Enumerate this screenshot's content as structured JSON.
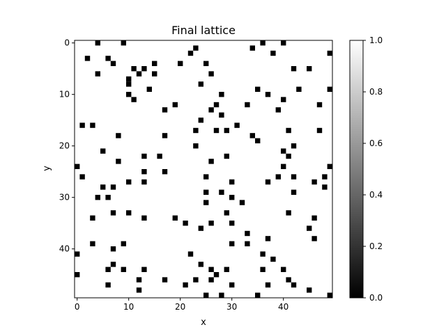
{
  "chart_data": {
    "type": "heatmap",
    "title": "Final lattice",
    "xlabel": "x",
    "ylabel": "y",
    "grid_size": [
      50,
      50
    ],
    "x_ticks": [
      0,
      10,
      20,
      30,
      40
    ],
    "y_ticks": [
      0,
      10,
      20,
      30,
      40
    ],
    "y_axis_inverted": true,
    "colormap": "gray",
    "background_value": 1,
    "cell_value": 0,
    "colorbar": {
      "range": [
        0.0,
        1.0
      ],
      "tick_labels": [
        "0.0",
        "0.2",
        "0.4",
        "0.6",
        "0.8",
        "1.0"
      ],
      "low_color": "#000000",
      "high_color": "#ffffff"
    },
    "cells": [
      [
        4,
        0
      ],
      [
        9,
        0
      ],
      [
        36,
        0
      ],
      [
        40,
        0
      ],
      [
        23,
        1
      ],
      [
        34,
        1
      ],
      [
        22,
        2
      ],
      [
        38,
        2
      ],
      [
        49,
        2
      ],
      [
        2,
        3
      ],
      [
        6,
        3
      ],
      [
        7,
        4
      ],
      [
        15,
        4
      ],
      [
        20,
        4
      ],
      [
        25,
        4
      ],
      [
        11,
        5
      ],
      [
        13,
        5
      ],
      [
        42,
        5
      ],
      [
        45,
        5
      ],
      [
        4,
        6
      ],
      [
        12,
        6
      ],
      [
        15,
        6
      ],
      [
        26,
        6
      ],
      [
        10,
        7
      ],
      [
        10,
        8
      ],
      [
        24,
        8
      ],
      [
        14,
        9
      ],
      [
        35,
        9
      ],
      [
        43,
        9
      ],
      [
        49,
        9
      ],
      [
        10,
        10
      ],
      [
        28,
        10
      ],
      [
        37,
        10
      ],
      [
        11,
        11
      ],
      [
        40,
        11
      ],
      [
        19,
        12
      ],
      [
        27,
        12
      ],
      [
        33,
        12
      ],
      [
        47,
        12
      ],
      [
        17,
        13
      ],
      [
        26,
        13
      ],
      [
        39,
        13
      ],
      [
        28,
        14
      ],
      [
        24,
        15
      ],
      [
        1,
        16
      ],
      [
        3,
        16
      ],
      [
        31,
        16
      ],
      [
        23,
        17
      ],
      [
        27,
        17
      ],
      [
        29,
        17
      ],
      [
        41,
        17
      ],
      [
        47,
        17
      ],
      [
        8,
        18
      ],
      [
        17,
        18
      ],
      [
        34,
        18
      ],
      [
        35,
        19
      ],
      [
        23,
        20
      ],
      [
        42,
        20
      ],
      [
        5,
        21
      ],
      [
        40,
        21
      ],
      [
        13,
        22
      ],
      [
        16,
        22
      ],
      [
        29,
        22
      ],
      [
        41,
        22
      ],
      [
        8,
        23
      ],
      [
        26,
        23
      ],
      [
        0,
        24
      ],
      [
        40,
        24
      ],
      [
        49,
        24
      ],
      [
        13,
        25
      ],
      [
        17,
        25
      ],
      [
        1,
        26
      ],
      [
        25,
        26
      ],
      [
        39,
        26
      ],
      [
        42,
        26
      ],
      [
        48,
        26
      ],
      [
        10,
        27
      ],
      [
        13,
        27
      ],
      [
        30,
        27
      ],
      [
        37,
        27
      ],
      [
        46,
        27
      ],
      [
        5,
        28
      ],
      [
        7,
        28
      ],
      [
        48,
        28
      ],
      [
        25,
        29
      ],
      [
        28,
        29
      ],
      [
        42,
        29
      ],
      [
        4,
        30
      ],
      [
        6,
        30
      ],
      [
        30,
        30
      ],
      [
        25,
        31
      ],
      [
        32,
        31
      ],
      [
        7,
        33
      ],
      [
        10,
        33
      ],
      [
        29,
        33
      ],
      [
        41,
        33
      ],
      [
        3,
        34
      ],
      [
        13,
        34
      ],
      [
        19,
        34
      ],
      [
        46,
        34
      ],
      [
        21,
        35
      ],
      [
        26,
        35
      ],
      [
        30,
        35
      ],
      [
        24,
        36
      ],
      [
        45,
        36
      ],
      [
        33,
        37
      ],
      [
        37,
        38
      ],
      [
        46,
        38
      ],
      [
        3,
        39
      ],
      [
        9,
        39
      ],
      [
        30,
        39
      ],
      [
        33,
        39
      ],
      [
        7,
        40
      ],
      [
        0,
        41
      ],
      [
        22,
        41
      ],
      [
        36,
        41
      ],
      [
        38,
        42
      ],
      [
        7,
        43
      ],
      [
        24,
        43
      ],
      [
        6,
        44
      ],
      [
        9,
        44
      ],
      [
        13,
        44
      ],
      [
        26,
        44
      ],
      [
        29,
        44
      ],
      [
        36,
        44
      ],
      [
        40,
        44
      ],
      [
        0,
        45
      ],
      [
        27,
        45
      ],
      [
        12,
        46
      ],
      [
        17,
        46
      ],
      [
        23,
        46
      ],
      [
        26,
        46
      ],
      [
        41,
        46
      ],
      [
        6,
        47
      ],
      [
        21,
        47
      ],
      [
        30,
        47
      ],
      [
        37,
        47
      ],
      [
        42,
        47
      ],
      [
        12,
        48
      ],
      [
        45,
        48
      ],
      [
        25,
        49
      ],
      [
        28,
        49
      ],
      [
        35,
        49
      ],
      [
        49,
        49
      ]
    ]
  }
}
